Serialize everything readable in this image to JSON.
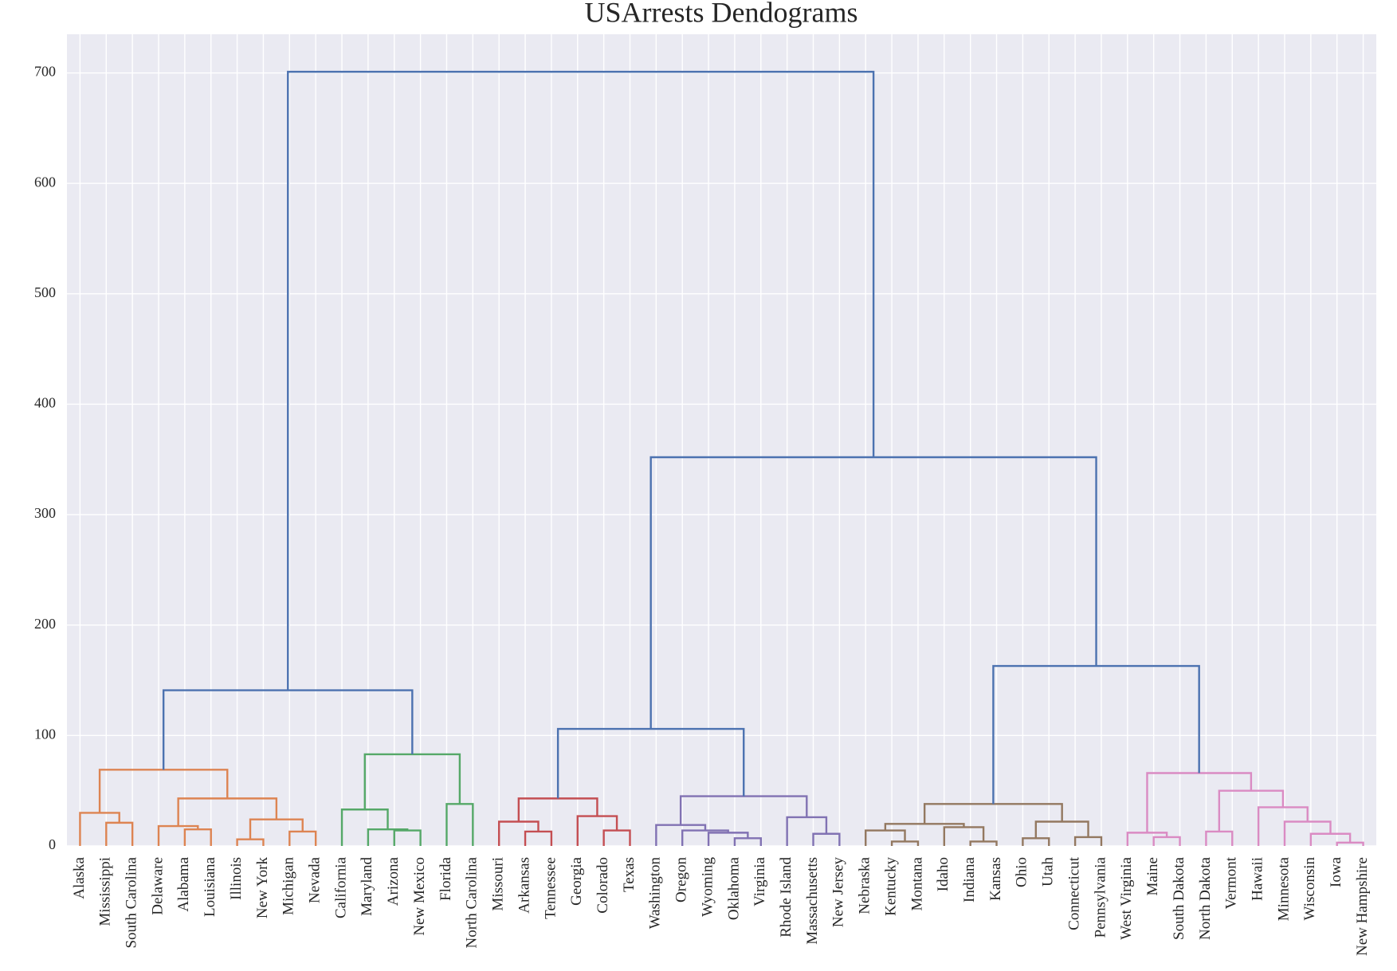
{
  "chart_data": {
    "type": "dendrogram",
    "title": "USArrests Dendograms",
    "ylim": [
      0,
      735
    ],
    "yticks": [
      0,
      100,
      200,
      300,
      400,
      500,
      600,
      700
    ],
    "grid": true,
    "background": "#eaeaf2",
    "tree": {
      "height": 701,
      "color": "#4c72b0",
      "children": [
        {
          "height": 141,
          "color": "#4c72b0",
          "children": [
            {
              "height": 69,
              "color": "#dd8452",
              "children": [
                {
                  "height": 30,
                  "color": "#dd8452",
                  "children": [
                    "Alaska",
                    {
                      "height": 21,
                      "color": "#dd8452",
                      "children": [
                        "Mississippi",
                        "South Carolina"
                      ]
                    }
                  ]
                },
                {
                  "height": 43,
                  "color": "#dd8452",
                  "children": [
                    {
                      "height": 18,
                      "color": "#dd8452",
                      "children": [
                        "Delaware",
                        {
                          "height": 15,
                          "color": "#dd8452",
                          "children": [
                            "Alabama",
                            "Louisiana"
                          ]
                        }
                      ]
                    },
                    {
                      "height": 24,
                      "color": "#dd8452",
                      "children": [
                        {
                          "height": 6,
                          "color": "#dd8452",
                          "children": [
                            "Illinois",
                            "New York"
                          ]
                        },
                        {
                          "height": 13,
                          "color": "#dd8452",
                          "children": [
                            "Michigan",
                            "Nevada"
                          ]
                        }
                      ]
                    }
                  ]
                }
              ]
            },
            {
              "height": 83,
              "color": "#55a868",
              "children": [
                {
                  "height": 33,
                  "color": "#55a868",
                  "children": [
                    "California",
                    {
                      "height": 15,
                      "color": "#55a868",
                      "children": [
                        "Maryland",
                        {
                          "height": 14,
                          "color": "#55a868",
                          "children": [
                            "Arizona",
                            "New Mexico"
                          ]
                        }
                      ]
                    }
                  ]
                },
                {
                  "height": 38,
                  "color": "#55a868",
                  "children": [
                    "Florida",
                    "North Carolina"
                  ]
                }
              ]
            }
          ]
        },
        {
          "height": 352,
          "color": "#4c72b0",
          "children": [
            {
              "height": 106,
              "color": "#4c72b0",
              "children": [
                {
                  "height": 43,
                  "color": "#c44e52",
                  "children": [
                    {
                      "height": 22,
                      "color": "#c44e52",
                      "children": [
                        "Missouri",
                        {
                          "height": 13,
                          "color": "#c44e52",
                          "children": [
                            "Arkansas",
                            "Tennessee"
                          ]
                        }
                      ]
                    },
                    {
                      "height": 27,
                      "color": "#c44e52",
                      "children": [
                        "Georgia",
                        {
                          "height": 14,
                          "color": "#c44e52",
                          "children": [
                            "Colorado",
                            "Texas"
                          ]
                        }
                      ]
                    }
                  ]
                },
                {
                  "height": 45,
                  "color": "#8172b3",
                  "children": [
                    {
                      "height": 19,
                      "color": "#8172b3",
                      "children": [
                        "Washington",
                        {
                          "height": 14,
                          "color": "#8172b3",
                          "children": [
                            "Oregon",
                            {
                              "height": 12,
                              "color": "#8172b3",
                              "children": [
                                "Wyoming",
                                {
                                  "height": 7,
                                  "color": "#8172b3",
                                  "children": [
                                    "Oklahoma",
                                    "Virginia"
                                  ]
                                }
                              ]
                            }
                          ]
                        }
                      ]
                    },
                    {
                      "height": 26,
                      "color": "#8172b3",
                      "children": [
                        "Rhode Island",
                        {
                          "height": 11,
                          "color": "#8172b3",
                          "children": [
                            "Massachusetts",
                            "New Jersey"
                          ]
                        }
                      ]
                    }
                  ]
                }
              ]
            },
            {
              "height": 163,
              "color": "#4c72b0",
              "children": [
                {
                  "height": 38,
                  "color": "#937860",
                  "children": [
                    {
                      "height": 20,
                      "color": "#937860",
                      "children": [
                        {
                          "height": 14,
                          "color": "#937860",
                          "children": [
                            "Nebraska",
                            {
                              "height": 4,
                              "color": "#937860",
                              "children": [
                                "Kentucky",
                                "Montana"
                              ]
                            }
                          ]
                        },
                        {
                          "height": 17,
                          "color": "#937860",
                          "children": [
                            "Idaho",
                            {
                              "height": 4,
                              "color": "#937860",
                              "children": [
                                "Indiana",
                                "Kansas"
                              ]
                            }
                          ]
                        }
                      ]
                    },
                    {
                      "height": 22,
                      "color": "#937860",
                      "children": [
                        {
                          "height": 7,
                          "color": "#937860",
                          "children": [
                            "Ohio",
                            "Utah"
                          ]
                        },
                        {
                          "height": 8,
                          "color": "#937860",
                          "children": [
                            "Connecticut",
                            "Pennsylvania"
                          ]
                        }
                      ]
                    }
                  ]
                },
                {
                  "height": 66,
                  "color": "#da8bc3",
                  "children": [
                    {
                      "height": 12,
                      "color": "#da8bc3",
                      "children": [
                        "West Virginia",
                        {
                          "height": 8,
                          "color": "#da8bc3",
                          "children": [
                            "Maine",
                            "South Dakota"
                          ]
                        }
                      ]
                    },
                    {
                      "height": 50,
                      "color": "#da8bc3",
                      "children": [
                        {
                          "height": 13,
                          "color": "#da8bc3",
                          "children": [
                            "North Dakota",
                            "Vermont"
                          ]
                        },
                        {
                          "height": 35,
                          "color": "#da8bc3",
                          "children": [
                            "Hawaii",
                            {
                              "height": 22,
                              "color": "#da8bc3",
                              "children": [
                                "Minnesota",
                                {
                                  "height": 11,
                                  "color": "#da8bc3",
                                  "children": [
                                    "Wisconsin",
                                    {
                                      "height": 3,
                                      "color": "#da8bc3",
                                      "children": [
                                        "Iowa",
                                        "New Hampshire"
                                      ]
                                    }
                                  ]
                                }
                              ]
                            }
                          ]
                        }
                      ]
                    }
                  ]
                }
              ]
            }
          ]
        }
      ]
    }
  }
}
